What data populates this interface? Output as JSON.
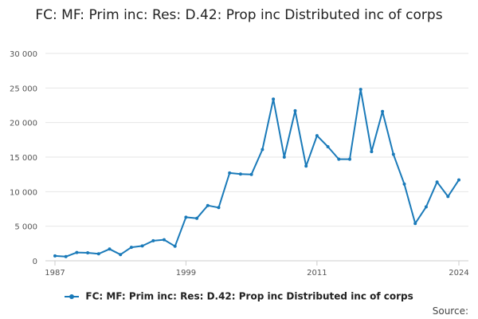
{
  "chart_data": {
    "type": "line",
    "title": "FC: MF: Prim inc: Res: D.42: Prop inc Distributed inc of corps",
    "xlabel": "",
    "ylabel": "",
    "xlim": [
      1987,
      2024
    ],
    "ylim": [
      0,
      30000
    ],
    "x_ticks": [
      1987,
      1999,
      2011,
      2024
    ],
    "x_tick_labels": [
      "1987",
      "1999",
      "2011",
      "2024"
    ],
    "y_ticks": [
      0,
      5000,
      10000,
      15000,
      20000,
      25000,
      30000
    ],
    "y_tick_labels": [
      "0",
      "5 000",
      "10 000",
      "15 000",
      "20 000",
      "25 000",
      "30 000"
    ],
    "grid": "horizontal",
    "legend_position": "bottom",
    "x": [
      1987,
      1988,
      1989,
      1990,
      1991,
      1992,
      1993,
      1994,
      1995,
      1996,
      1997,
      1998,
      1999,
      2000,
      2001,
      2002,
      2003,
      2004,
      2005,
      2006,
      2007,
      2008,
      2009,
      2010,
      2011,
      2012,
      2013,
      2014,
      2015,
      2016,
      2017,
      2018,
      2019,
      2020,
      2021,
      2022,
      2023,
      2024
    ],
    "series": [
      {
        "name": "FC: MF: Prim inc: Res: D.42: Prop inc Distributed inc of corps",
        "color": "#1a7ab9",
        "values": [
          700,
          600,
          1200,
          1150,
          1000,
          1700,
          900,
          1950,
          2150,
          2900,
          3050,
          2100,
          6300,
          6150,
          8000,
          7700,
          12700,
          12550,
          12500,
          16100,
          23400,
          15000,
          21700,
          13700,
          18100,
          16500,
          14700,
          14700,
          24800,
          15800,
          21600,
          15400,
          11100,
          5400,
          7800,
          11400,
          9300,
          11700
        ]
      }
    ]
  },
  "legend": {
    "label": "FC: MF: Prim inc: Res: D.42: Prop inc Distributed inc of corps"
  },
  "footer": {
    "source_label": "Source:"
  }
}
